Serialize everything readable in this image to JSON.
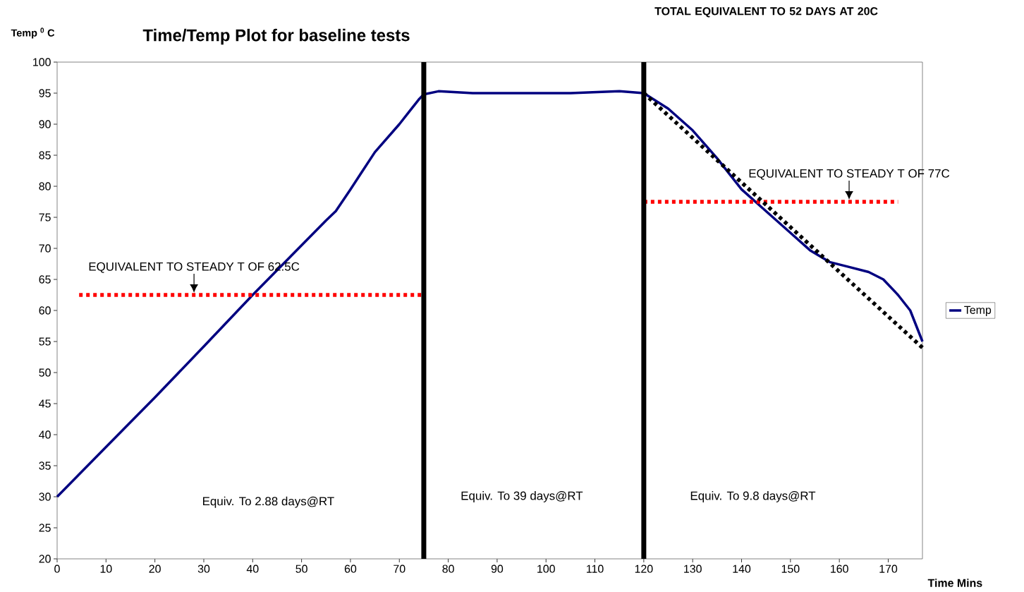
{
  "chart_data": {
    "type": "line",
    "title": "Time/Temp Plot for baseline tests",
    "xlabel": "Time Mins",
    "ylabel": "Temp $^{0}$ C",
    "xlim": [
      0,
      177
    ],
    "ylim": [
      20,
      100
    ],
    "xticks": [
      0,
      10,
      20,
      30,
      40,
      50,
      60,
      70,
      80,
      90,
      100,
      110,
      120,
      130,
      140,
      150,
      160,
      170
    ],
    "yticks": [
      20,
      25,
      30,
      35,
      40,
      45,
      50,
      55,
      60,
      65,
      70,
      75,
      80,
      85,
      90,
      95,
      100
    ],
    "series": [
      {
        "name": "Temp",
        "color": "#000080",
        "line_style": "solid",
        "x": [
          0,
          10,
          20,
          30,
          40,
          50,
          55,
          57,
          60,
          65,
          70,
          72,
          74,
          75,
          78,
          85,
          100,
          105,
          115,
          120,
          125,
          130,
          135,
          140,
          145,
          150,
          154,
          158,
          162,
          166,
          169,
          172,
          174.5,
          177
        ],
        "values": [
          30,
          38,
          46,
          54.2,
          62.5,
          70.5,
          74.5,
          76,
          79.5,
          85.5,
          90,
          92,
          94,
          94.8,
          95.3,
          95,
          95,
          95,
          95.3,
          95,
          92.5,
          89,
          84.5,
          79.5,
          76,
          72.5,
          69.7,
          67.8,
          67,
          66.2,
          65,
          62.5,
          60,
          55
        ]
      },
      {
        "type": "line",
        "color": "#ff0000",
        "line_style": "dotted",
        "x": [
          4.5,
          74.5
        ],
        "values": [
          62.5,
          62.5
        ]
      },
      {
        "type": "line",
        "color": "#ff0000",
        "line_style": "dotted",
        "x": [
          120,
          172
        ],
        "values": [
          77.5,
          77.5
        ]
      },
      {
        "type": "line",
        "color": "#000000",
        "line_style": "dotted",
        "x": [
          120,
          177
        ],
        "values": [
          95,
          54
        ]
      }
    ],
    "ref_lines": [
      {
        "axis": "x",
        "value": 75,
        "color": "#000000"
      },
      {
        "axis": "x",
        "value": 120,
        "color": "#000000"
      }
    ],
    "annotations": [
      "TOTAL EQUIVALENT TO 52 DAYS AT 20C",
      {
        "text": "EQUIVALENT TO STEADY T OF 62.5C",
        "x": 28,
        "y": 62.5
      },
      {
        "text": "EQUIVALENT TO STEADY T OF 77C",
        "x": 162,
        "y": 77.5
      },
      "Equiv. To 2.88 days@RT",
      "Equiv. To 39 days@RT",
      "Equiv. To 9.8 days@RT"
    ],
    "legend": "right",
    "marker": "none",
    "grid": false
  }
}
